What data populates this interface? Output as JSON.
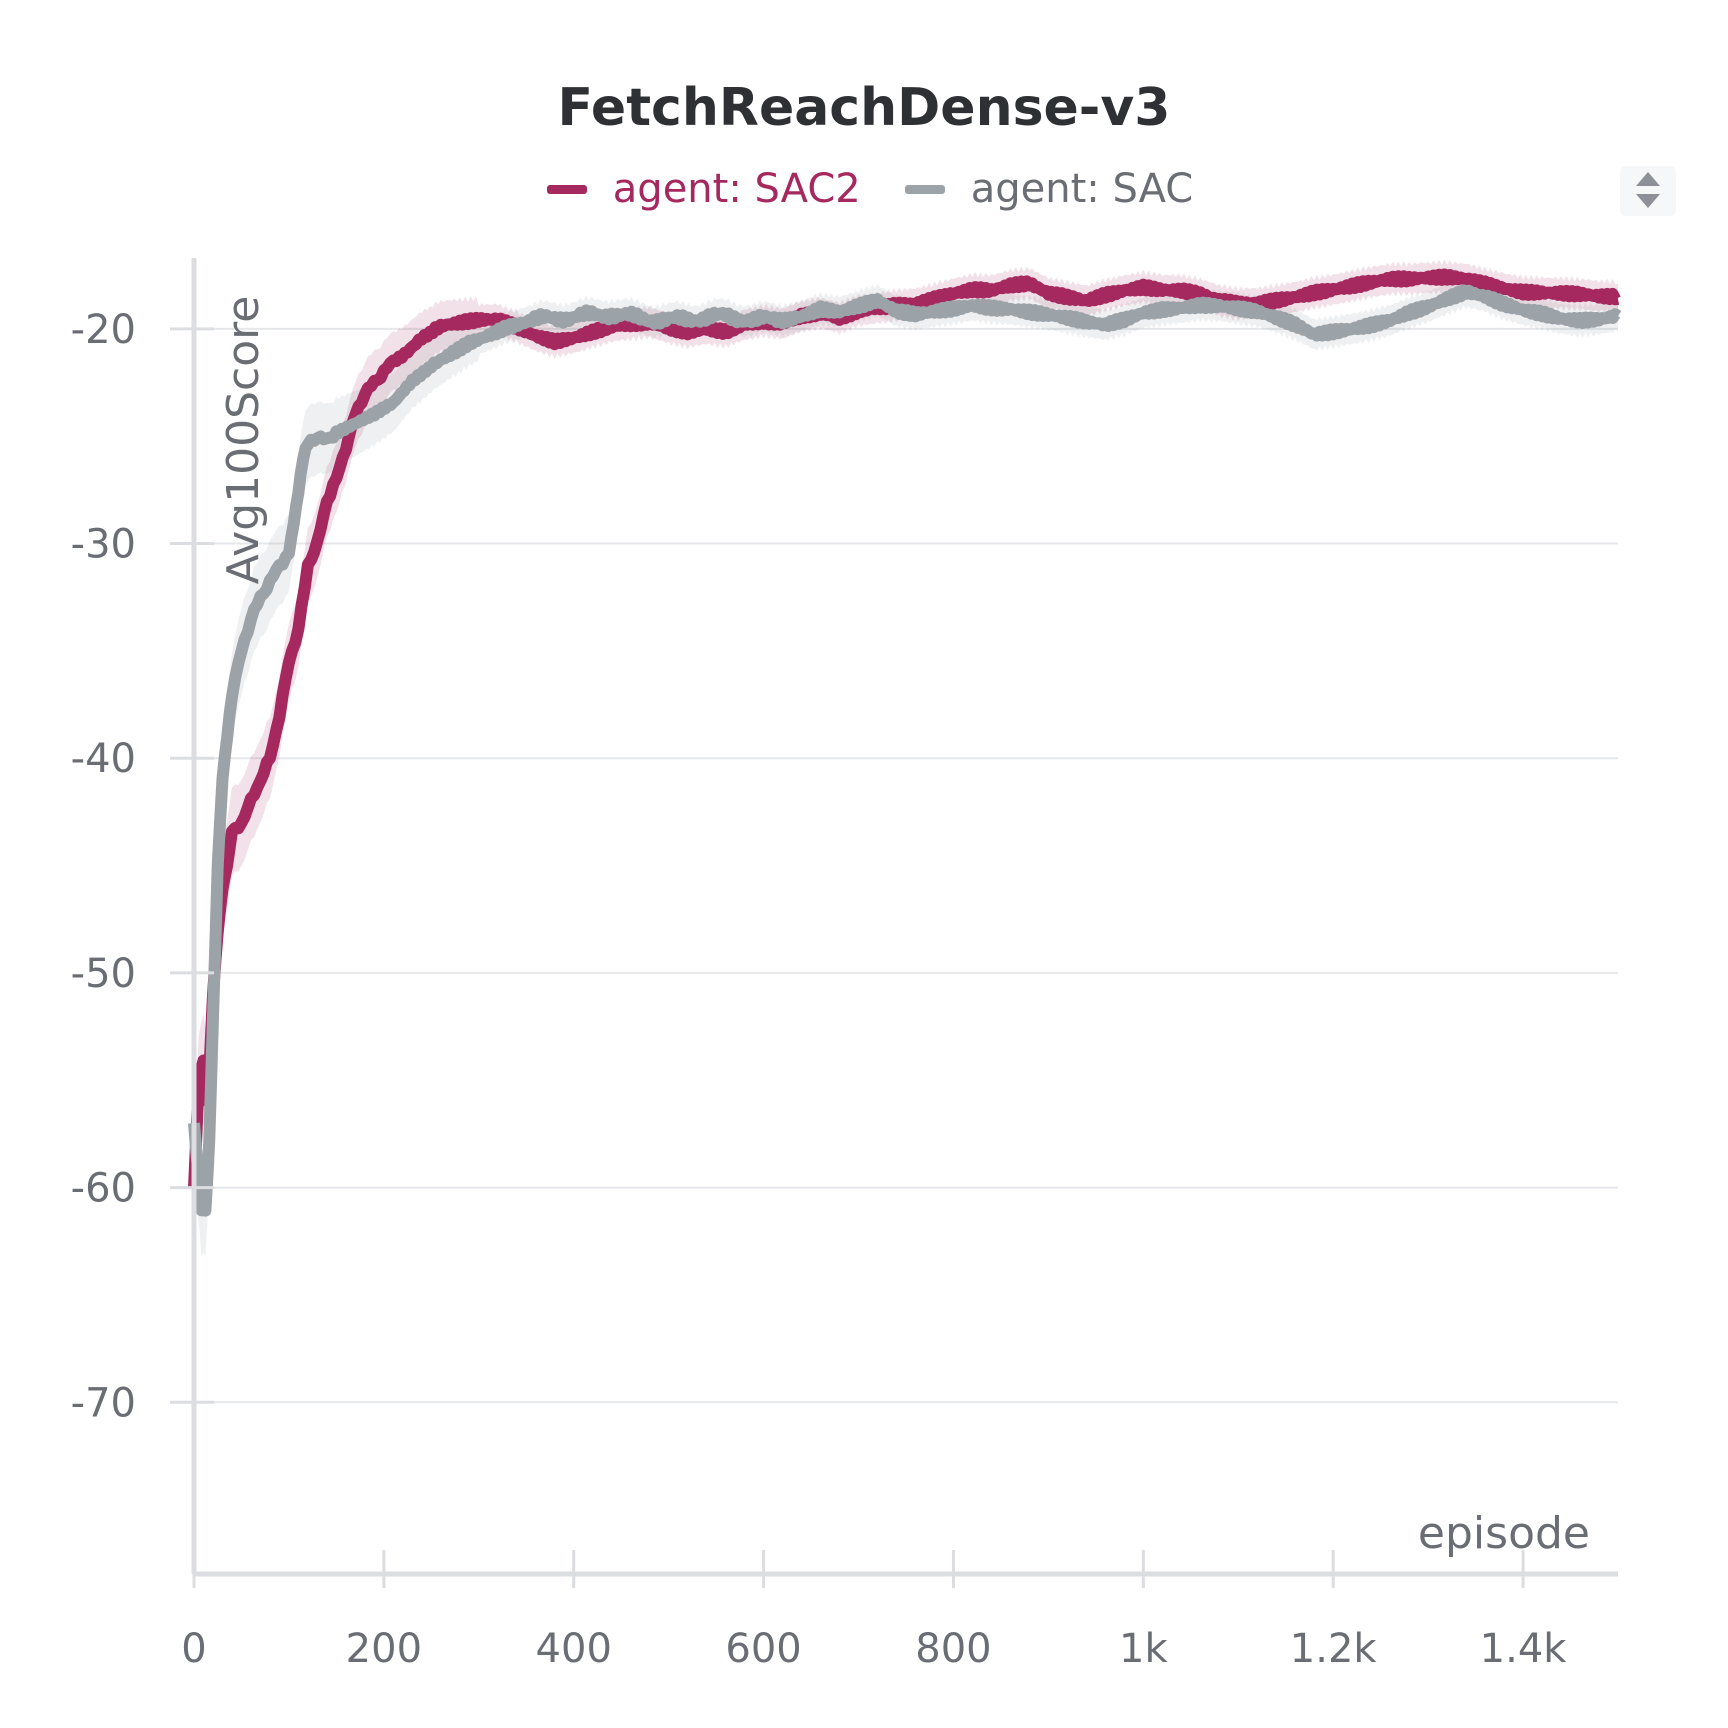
{
  "chart_data": {
    "type": "line",
    "title": "FetchReachDense-v3",
    "xlabel": "episode",
    "ylabel": "Avg100Score",
    "xlim": [
      0,
      1500
    ],
    "ylim": [
      -78,
      -16.7
    ],
    "x_ticks": [
      {
        "value": 0,
        "label": "0"
      },
      {
        "value": 200,
        "label": "200"
      },
      {
        "value": 400,
        "label": "400"
      },
      {
        "value": 600,
        "label": "600"
      },
      {
        "value": 800,
        "label": "800"
      },
      {
        "value": 1000,
        "label": "1k"
      },
      {
        "value": 1200,
        "label": "1.2k"
      },
      {
        "value": 1400,
        "label": "1.4k"
      }
    ],
    "y_ticks": [
      {
        "value": -20,
        "label": "-20"
      },
      {
        "value": -30,
        "label": "-30"
      },
      {
        "value": -40,
        "label": "-40"
      },
      {
        "value": -50,
        "label": "-50"
      },
      {
        "value": -60,
        "label": "-60"
      },
      {
        "value": -70,
        "label": "-70"
      }
    ],
    "grid": true,
    "legend_position": "top-center",
    "series": [
      {
        "name": "agent: SAC2",
        "legend_label": "agent: SAC2",
        "color": "#a5285f",
        "points": [
          [
            0,
            -60
          ],
          [
            5,
            -55
          ],
          [
            10,
            -54
          ],
          [
            15,
            -56
          ],
          [
            20,
            -51
          ],
          [
            25,
            -48
          ],
          [
            30,
            -46
          ],
          [
            35,
            -45
          ],
          [
            40,
            -43.5
          ],
          [
            50,
            -43
          ],
          [
            60,
            -42
          ],
          [
            70,
            -41
          ],
          [
            80,
            -40
          ],
          [
            90,
            -38
          ],
          [
            100,
            -35.5
          ],
          [
            110,
            -34
          ],
          [
            120,
            -31
          ],
          [
            130,
            -30
          ],
          [
            140,
            -28
          ],
          [
            150,
            -27
          ],
          [
            160,
            -25.5
          ],
          [
            170,
            -24
          ],
          [
            180,
            -23
          ],
          [
            190,
            -22.5
          ],
          [
            200,
            -22
          ],
          [
            210,
            -21.5
          ],
          [
            225,
            -21
          ],
          [
            240,
            -20.5
          ],
          [
            260,
            -20
          ],
          [
            280,
            -19.8
          ],
          [
            300,
            -19.6
          ],
          [
            320,
            -19.5
          ],
          [
            340,
            -19.8
          ],
          [
            360,
            -20.2
          ],
          [
            380,
            -20.5
          ],
          [
            400,
            -20.4
          ],
          [
            420,
            -20.2
          ],
          [
            440,
            -20.0
          ],
          [
            460,
            -19.9
          ],
          [
            480,
            -19.8
          ],
          [
            500,
            -20.0
          ],
          [
            520,
            -20.1
          ],
          [
            540,
            -19.9
          ],
          [
            560,
            -20.0
          ],
          [
            580,
            -19.7
          ],
          [
            600,
            -19.6
          ],
          [
            620,
            -19.8
          ],
          [
            640,
            -19.5
          ],
          [
            660,
            -19.4
          ],
          [
            680,
            -19.6
          ],
          [
            700,
            -19.2
          ],
          [
            720,
            -19.0
          ],
          [
            740,
            -18.8
          ],
          [
            760,
            -18.7
          ],
          [
            780,
            -18.5
          ],
          [
            800,
            -18.3
          ],
          [
            820,
            -18.2
          ],
          [
            840,
            -18.3
          ],
          [
            860,
            -18.1
          ],
          [
            880,
            -18.0
          ],
          [
            900,
            -18.4
          ],
          [
            920,
            -18.5
          ],
          [
            940,
            -18.6
          ],
          [
            960,
            -18.3
          ],
          [
            980,
            -18.1
          ],
          [
            1000,
            -18.0
          ],
          [
            1020,
            -18.2
          ],
          [
            1040,
            -18.3
          ],
          [
            1060,
            -18.5
          ],
          [
            1080,
            -18.8
          ],
          [
            1100,
            -18.9
          ],
          [
            1120,
            -18.8
          ],
          [
            1140,
            -18.6
          ],
          [
            1160,
            -18.4
          ],
          [
            1180,
            -18.2
          ],
          [
            1200,
            -18.1
          ],
          [
            1220,
            -18.0
          ],
          [
            1240,
            -17.9
          ],
          [
            1260,
            -17.8
          ],
          [
            1280,
            -17.8
          ],
          [
            1300,
            -17.7
          ],
          [
            1320,
            -17.6
          ],
          [
            1340,
            -17.6
          ],
          [
            1360,
            -17.8
          ],
          [
            1380,
            -18.0
          ],
          [
            1400,
            -18.2
          ],
          [
            1420,
            -18.3
          ],
          [
            1440,
            -18.4
          ],
          [
            1460,
            -18.5
          ],
          [
            1480,
            -18.6
          ],
          [
            1500,
            -18.6
          ]
        ]
      },
      {
        "name": "agent: SAC",
        "legend_label": "agent: SAC",
        "color": "#9ca3a8",
        "points": [
          [
            0,
            -57
          ],
          [
            8,
            -61
          ],
          [
            12,
            -61
          ],
          [
            16,
            -58
          ],
          [
            20,
            -52
          ],
          [
            25,
            -45
          ],
          [
            30,
            -41
          ],
          [
            35,
            -39
          ],
          [
            40,
            -37
          ],
          [
            50,
            -35
          ],
          [
            60,
            -33.5
          ],
          [
            70,
            -32.5
          ],
          [
            80,
            -31.8
          ],
          [
            90,
            -31
          ],
          [
            100,
            -30.5
          ],
          [
            105,
            -29
          ],
          [
            110,
            -27.5
          ],
          [
            115,
            -26
          ],
          [
            120,
            -25.4
          ],
          [
            130,
            -25.0
          ],
          [
            140,
            -25.2
          ],
          [
            150,
            -24.8
          ],
          [
            170,
            -24.4
          ],
          [
            190,
            -24.0
          ],
          [
            210,
            -23.5
          ],
          [
            230,
            -22.5
          ],
          [
            250,
            -21.8
          ],
          [
            270,
            -21.2
          ],
          [
            290,
            -20.6
          ],
          [
            310,
            -20.2
          ],
          [
            330,
            -19.8
          ],
          [
            350,
            -19.6
          ],
          [
            380,
            -19.5
          ],
          [
            410,
            -19.4
          ],
          [
            440,
            -19.3
          ],
          [
            470,
            -19.5
          ],
          [
            500,
            -19.6
          ],
          [
            530,
            -19.5
          ],
          [
            560,
            -19.4
          ],
          [
            590,
            -19.6
          ],
          [
            620,
            -19.5
          ],
          [
            640,
            -19.3
          ],
          [
            660,
            -19.0
          ],
          [
            680,
            -19.2
          ],
          [
            700,
            -19.0
          ],
          [
            720,
            -18.8
          ],
          [
            740,
            -19.3
          ],
          [
            760,
            -19.4
          ],
          [
            780,
            -19.2
          ],
          [
            800,
            -19.0
          ],
          [
            820,
            -18.8
          ],
          [
            840,
            -18.9
          ],
          [
            860,
            -19.0
          ],
          [
            880,
            -19.2
          ],
          [
            900,
            -19.4
          ],
          [
            920,
            -19.6
          ],
          [
            940,
            -19.8
          ],
          [
            960,
            -19.9
          ],
          [
            980,
            -19.6
          ],
          [
            1000,
            -19.2
          ],
          [
            1020,
            -19.0
          ],
          [
            1040,
            -18.9
          ],
          [
            1060,
            -18.8
          ],
          [
            1080,
            -18.9
          ],
          [
            1100,
            -19.1
          ],
          [
            1120,
            -19.3
          ],
          [
            1140,
            -19.6
          ],
          [
            1160,
            -19.9
          ],
          [
            1180,
            -20.3
          ],
          [
            1200,
            -20.1
          ],
          [
            1220,
            -19.9
          ],
          [
            1240,
            -19.7
          ],
          [
            1260,
            -19.5
          ],
          [
            1280,
            -19.2
          ],
          [
            1300,
            -19.0
          ],
          [
            1320,
            -18.7
          ],
          [
            1340,
            -18.4
          ],
          [
            1360,
            -18.6
          ],
          [
            1380,
            -18.9
          ],
          [
            1400,
            -19.1
          ],
          [
            1420,
            -19.2
          ],
          [
            1440,
            -19.4
          ],
          [
            1460,
            -19.5
          ],
          [
            1480,
            -19.5
          ],
          [
            1500,
            -19.4
          ]
        ]
      }
    ]
  }
}
